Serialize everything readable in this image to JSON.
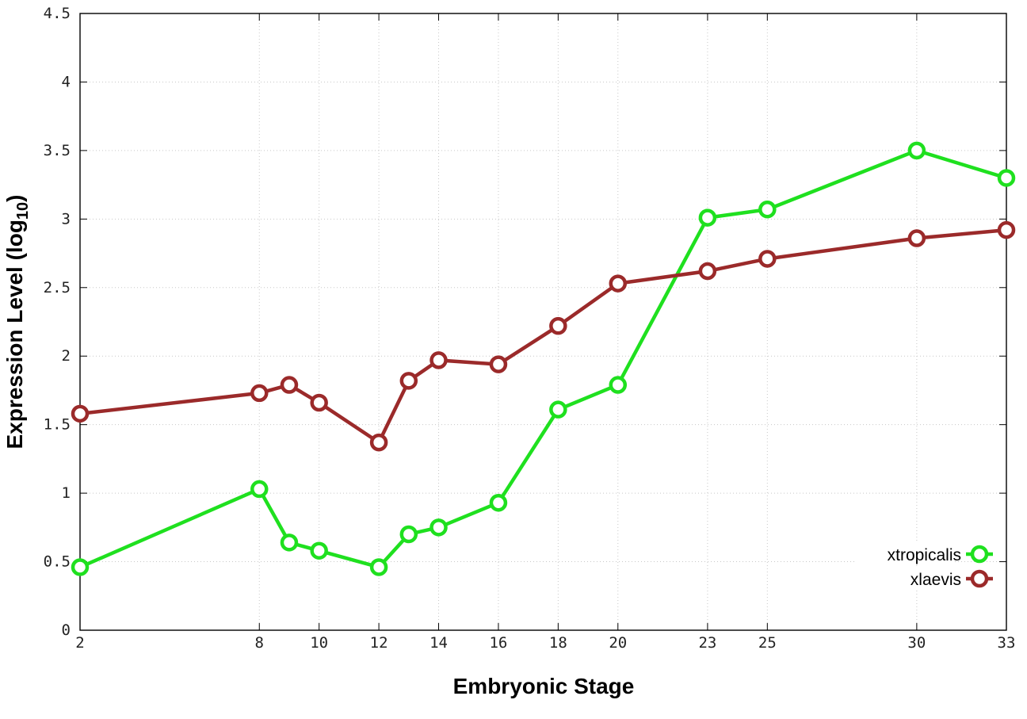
{
  "chart_data": {
    "type": "line",
    "title": "",
    "xlabel": "Embryonic Stage",
    "ylabel_main": "Expression Level (log",
    "ylabel_sub": "10",
    "ylabel_close": ")",
    "xlim": [
      2,
      33
    ],
    "ylim": [
      0,
      4.5
    ],
    "x_ticks": [
      2,
      8,
      10,
      12,
      14,
      16,
      18,
      20,
      23,
      25,
      30,
      33
    ],
    "y_ticks": [
      0,
      0.5,
      1,
      1.5,
      2,
      2.5,
      3,
      3.5,
      4,
      4.5
    ],
    "grid": true,
    "legend_position": "bottom-right",
    "x": [
      2,
      8,
      9,
      10,
      12,
      13,
      14,
      16,
      18,
      20,
      23,
      25,
      30,
      33
    ],
    "series": [
      {
        "name": "xtropicalis",
        "color": "#1fe01f",
        "values": [
          0.46,
          1.03,
          0.64,
          0.58,
          0.46,
          0.7,
          0.75,
          0.93,
          1.61,
          1.79,
          3.01,
          3.07,
          3.5,
          3.3
        ]
      },
      {
        "name": "xlaevis",
        "color": "#9b2a2a",
        "values": [
          1.58,
          1.73,
          1.79,
          1.66,
          1.37,
          1.82,
          1.97,
          1.94,
          2.22,
          2.53,
          2.62,
          2.71,
          2.86,
          2.92
        ]
      }
    ]
  }
}
